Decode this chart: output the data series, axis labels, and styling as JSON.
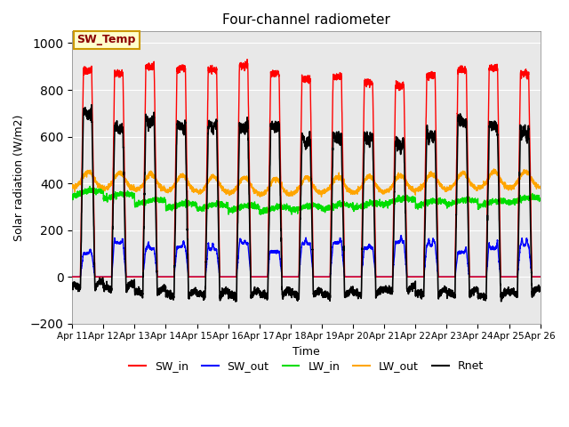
{
  "title": "Four-channel radiometer",
  "ylabel": "Solar radiation (W/m2)",
  "xlabel": "Time",
  "ylim": [
    -200,
    1050
  ],
  "yticks": [
    -200,
    0,
    200,
    400,
    600,
    800,
    1000
  ],
  "n_days": 15,
  "background_color": "#e8e8e8",
  "sw_in_color": "red",
  "sw_out_color": "blue",
  "lw_in_color": "#00dd00",
  "lw_out_color": "orange",
  "rnet_color": "black",
  "annotation_text": "SW_Temp",
  "annotation_facecolor": "#ffffcc",
  "annotation_edgecolor": "#cc9900"
}
